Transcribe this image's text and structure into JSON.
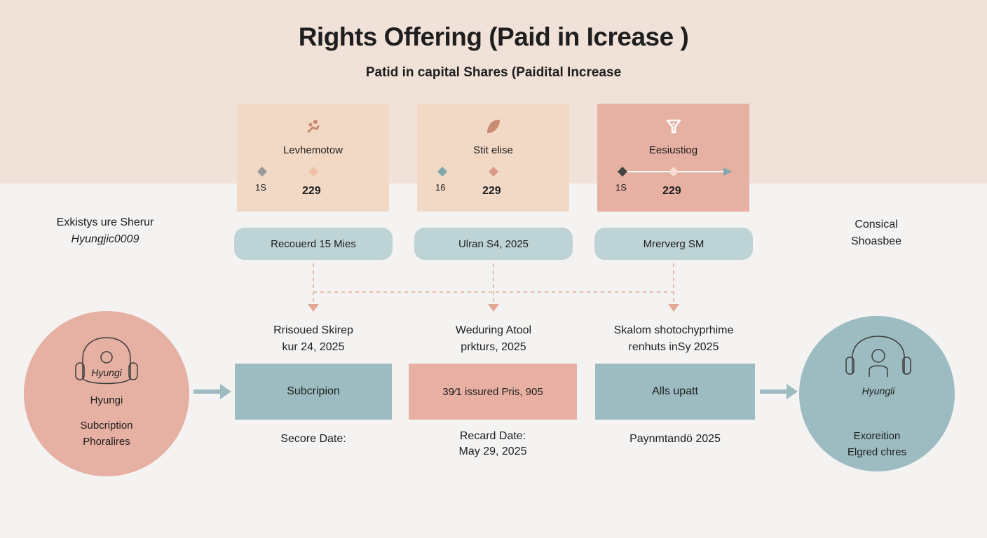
{
  "header": {
    "title": "Rights Offering (Paid in Icrease )",
    "subtitle": "Patid in capital Shares (Paidital Increase"
  },
  "cards": [
    {
      "label": "Levhemotow",
      "num1": "1S",
      "num2": "229",
      "icon": "hand-coins-icon",
      "color": "#f2d9c6"
    },
    {
      "label": "Stit elise",
      "num1": "16",
      "num2": "229",
      "icon": "leaf-icon",
      "color": "#f2d9c6"
    },
    {
      "label": "Eesiustiog",
      "num1": "1S",
      "num2": "229",
      "icon": "funnel-icon",
      "color": "#e6b0a3"
    }
  ],
  "pills": [
    "Recouerd 15 Mies",
    "Ulran S4, 2025",
    "Mrerverg SM"
  ],
  "left_note": {
    "line1": "Exkistys ure Sherur",
    "line2": "Hyungjic0009"
  },
  "right_note": {
    "line1": "Consical",
    "line2": "Shoasbee"
  },
  "mid_labels": [
    {
      "line1": "Rrisoued Skirep",
      "line2": "kur 24, 2025"
    },
    {
      "line1": "Weduring Atool",
      "line2": "prkturs, 2025"
    },
    {
      "line1": "Skalom shotochyprhime",
      "line2": "renhuts inSy 2025"
    }
  ],
  "boxes": [
    {
      "label": "Subcripion",
      "color": "#9cbcc1"
    },
    {
      "label": "39⁄1 issured Pris, 905",
      "color": "#e8b0a3"
    },
    {
      "label": "Alls upatt",
      "color": "#9cbcc1"
    }
  ],
  "under_boxes": [
    {
      "line1": "Secore Date:",
      "line2": ""
    },
    {
      "line1": "Recard Date:",
      "line2": "May 29, 2025"
    },
    {
      "line1": "Paynmtandö 2025",
      "line2": ""
    }
  ],
  "left_circle": {
    "badge": "Hyungi",
    "name": "Hyungi",
    "line1": "Subcription",
    "line2": "Phoralires",
    "color": "#e6b0a3"
  },
  "right_circle": {
    "badge": "Hyungli",
    "line1": "Exoreition",
    "line2": "Elgred chres",
    "color": "#9cbcc1"
  }
}
